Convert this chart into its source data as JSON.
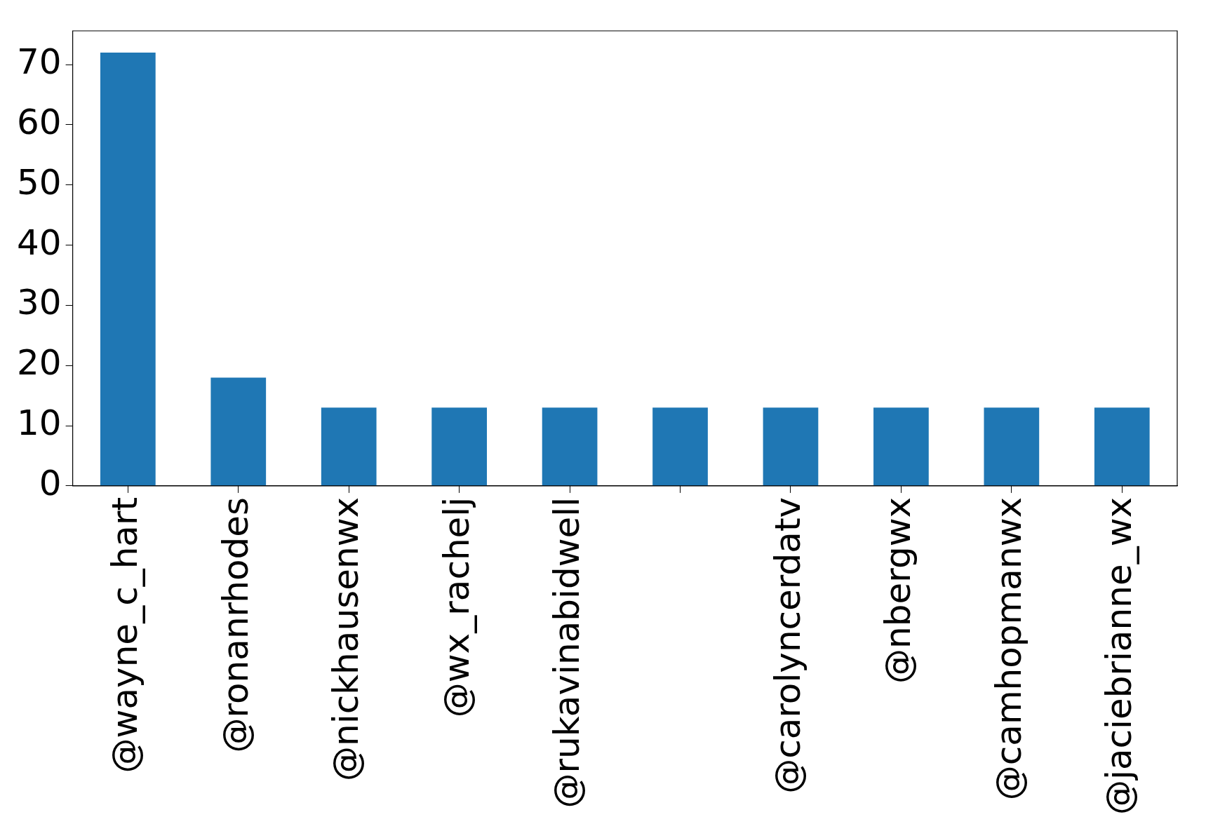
{
  "chart_data": {
    "type": "bar",
    "categories": [
      "@wayne_c_hart",
      "@ronanrhodes",
      "@nickhausenwx",
      "@wx_rachelj",
      "@rukavinabidwell",
      null,
      "@carolyncerdatv",
      "@nbergwx",
      "@camhopmanwx",
      "@jaciebrianne_wx"
    ],
    "values": [
      72,
      18,
      13,
      13,
      13,
      13,
      13,
      13,
      13,
      13
    ],
    "color": "#1f77b4",
    "ylim": [
      0,
      75.6
    ],
    "yticks": [
      0,
      10,
      20,
      30,
      40,
      50,
      60,
      70
    ],
    "grid": false,
    "legend": false
  }
}
